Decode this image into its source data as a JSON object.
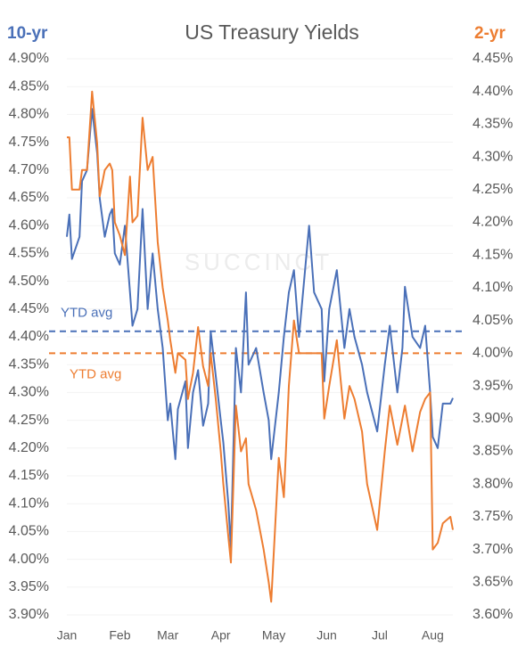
{
  "chart_data": {
    "type": "line",
    "title": "US Treasury Yields",
    "watermark": "SUCCINCT",
    "y_label": "10-yr",
    "y2_label": "2-yr",
    "x": [
      0,
      1,
      2,
      5,
      6,
      8,
      10,
      12,
      13,
      15,
      17,
      18,
      19,
      21,
      23,
      25,
      26,
      28,
      30,
      32,
      34,
      36,
      38,
      40,
      41,
      43,
      44,
      47,
      48,
      50,
      52,
      54,
      56,
      57,
      59,
      61,
      62,
      64,
      65,
      67,
      69,
      71,
      72,
      75,
      78,
      80,
      81,
      84,
      86,
      88,
      90,
      92,
      96,
      98,
      101,
      102,
      104,
      107,
      110,
      112,
      114,
      117,
      119,
      123,
      126,
      128,
      131,
      133,
      134,
      137,
      140,
      142,
      144,
      145,
      147,
      149,
      152,
      153
    ],
    "xlim": [
      0,
      153
    ],
    "xticks": [
      {
        "value": 0,
        "label": "Jan"
      },
      {
        "value": 21,
        "label": "Feb"
      },
      {
        "value": 40,
        "label": "Mar"
      },
      {
        "value": 61,
        "label": "Apr"
      },
      {
        "value": 82,
        "label": "May"
      },
      {
        "value": 103,
        "label": "Jun"
      },
      {
        "value": 124,
        "label": "Jul"
      },
      {
        "value": 145,
        "label": "Aug"
      }
    ],
    "series": [
      {
        "name": "10-yr",
        "color": "#4a70b8",
        "axis": "y",
        "values": [
          4.58,
          4.62,
          4.54,
          4.58,
          4.68,
          4.7,
          4.81,
          4.73,
          4.65,
          4.58,
          4.62,
          4.63,
          4.55,
          4.53,
          4.6,
          4.48,
          4.42,
          4.45,
          4.63,
          4.45,
          4.55,
          4.45,
          4.38,
          4.25,
          4.28,
          4.18,
          4.27,
          4.32,
          4.2,
          4.3,
          4.34,
          4.24,
          4.28,
          4.41,
          4.33,
          4.25,
          4.21,
          4.1,
          4.02,
          4.38,
          4.3,
          4.48,
          4.35,
          4.38,
          4.3,
          4.25,
          4.18,
          4.3,
          4.4,
          4.48,
          4.52,
          4.4,
          4.6,
          4.48,
          4.45,
          4.32,
          4.45,
          4.52,
          4.38,
          4.45,
          4.4,
          4.35,
          4.3,
          4.23,
          4.35,
          4.42,
          4.3,
          4.38,
          4.49,
          4.4,
          4.38,
          4.42,
          4.3,
          4.22,
          4.2,
          4.28,
          4.28,
          4.29
        ]
      },
      {
        "name": "2-yr",
        "color": "#ed7d31",
        "axis": "y2",
        "values": [
          4.33,
          4.33,
          4.25,
          4.25,
          4.28,
          4.28,
          4.4,
          4.32,
          4.24,
          4.28,
          4.29,
          4.28,
          4.2,
          4.18,
          4.15,
          4.27,
          4.2,
          4.21,
          4.36,
          4.28,
          4.3,
          4.17,
          4.1,
          4.05,
          4.02,
          3.97,
          4.0,
          3.99,
          3.93,
          3.97,
          4.04,
          3.98,
          3.95,
          4.0,
          3.93,
          3.85,
          3.8,
          3.72,
          3.68,
          3.92,
          3.85,
          3.87,
          3.8,
          3.76,
          3.7,
          3.65,
          3.62,
          3.84,
          3.78,
          3.95,
          4.05,
          4.0,
          4.0,
          4.0,
          4.0,
          3.9,
          3.95,
          4.02,
          3.9,
          3.95,
          3.93,
          3.88,
          3.8,
          3.73,
          3.85,
          3.92,
          3.86,
          3.9,
          3.92,
          3.85,
          3.91,
          3.93,
          3.94,
          3.7,
          3.71,
          3.74,
          3.75,
          3.73
        ]
      }
    ],
    "ylim": [
      3.9,
      4.9
    ],
    "yticks": [
      {
        "value": 3.9,
        "label": "3.90%"
      },
      {
        "value": 3.95,
        "label": "3.95%"
      },
      {
        "value": 4.0,
        "label": "4.00%"
      },
      {
        "value": 4.05,
        "label": "4.05%"
      },
      {
        "value": 4.1,
        "label": "4.10%"
      },
      {
        "value": 4.15,
        "label": "4.15%"
      },
      {
        "value": 4.2,
        "label": "4.20%"
      },
      {
        "value": 4.25,
        "label": "4.25%"
      },
      {
        "value": 4.3,
        "label": "4.30%"
      },
      {
        "value": 4.35,
        "label": "4.35%"
      },
      {
        "value": 4.4,
        "label": "4.40%"
      },
      {
        "value": 4.45,
        "label": "4.45%"
      },
      {
        "value": 4.5,
        "label": "4.50%"
      },
      {
        "value": 4.55,
        "label": "4.55%"
      },
      {
        "value": 4.6,
        "label": "4.60%"
      },
      {
        "value": 4.65,
        "label": "4.65%"
      },
      {
        "value": 4.7,
        "label": "4.70%"
      },
      {
        "value": 4.75,
        "label": "4.75%"
      },
      {
        "value": 4.8,
        "label": "4.80%"
      },
      {
        "value": 4.85,
        "label": "4.85%"
      },
      {
        "value": 4.9,
        "label": "4.90%"
      }
    ],
    "y2lim": [
      3.6,
      4.45
    ],
    "y2ticks": [
      {
        "value": 3.6,
        "label": "3.60%"
      },
      {
        "value": 3.65,
        "label": "3.65%"
      },
      {
        "value": 3.7,
        "label": "3.70%"
      },
      {
        "value": 3.75,
        "label": "3.75%"
      },
      {
        "value": 3.8,
        "label": "3.80%"
      },
      {
        "value": 3.85,
        "label": "3.85%"
      },
      {
        "value": 3.9,
        "label": "3.90%"
      },
      {
        "value": 3.95,
        "label": "3.95%"
      },
      {
        "value": 4.0,
        "label": "4.00%"
      },
      {
        "value": 4.05,
        "label": "4.05%"
      },
      {
        "value": 4.1,
        "label": "4.10%"
      },
      {
        "value": 4.15,
        "label": "4.15%"
      },
      {
        "value": 4.2,
        "label": "4.20%"
      },
      {
        "value": 4.25,
        "label": "4.25%"
      },
      {
        "value": 4.3,
        "label": "4.30%"
      },
      {
        "value": 4.35,
        "label": "4.35%"
      },
      {
        "value": 4.4,
        "label": "4.40%"
      },
      {
        "value": 4.45,
        "label": "4.45%"
      }
    ],
    "annotations": [
      {
        "text": "YTD avg",
        "value": 4.41,
        "axis": "y"
      },
      {
        "text": "YTD avg",
        "value": 4.0,
        "axis": "y2"
      }
    ],
    "grid": true
  }
}
